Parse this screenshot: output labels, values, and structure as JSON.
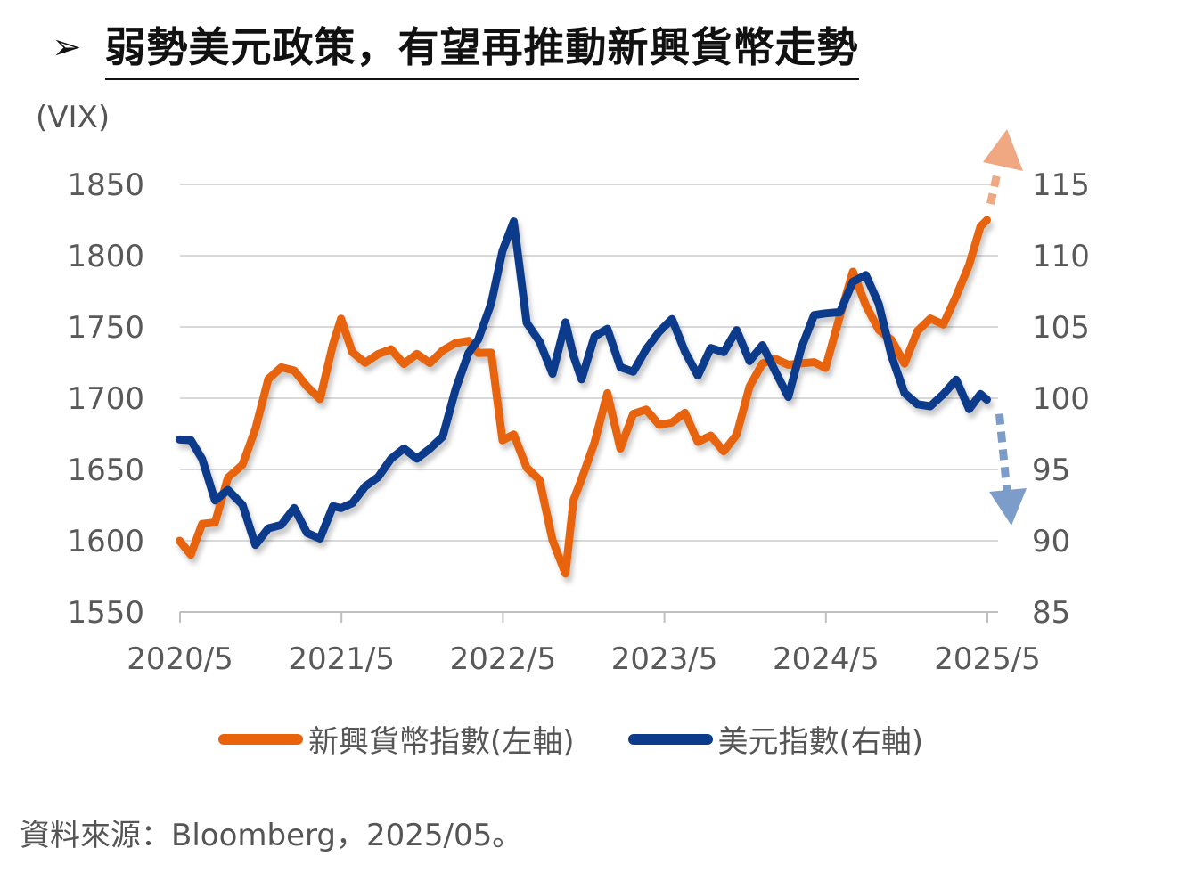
{
  "header": {
    "arrow": "➢",
    "title": "弱勢美元政策，有望再推動新興貨幣走勢"
  },
  "unit_label": "(VIX)",
  "source": "資料來源：Bloomberg，2025/05。",
  "colors": {
    "em_currency": "#E8630A",
    "dxy": "#0C3B8C",
    "em_arrow": "#F0A882",
    "dxy_arrow": "#7C9CC9",
    "grid": "#d9d9d9",
    "tick_text": "#595959"
  },
  "chart_data": {
    "type": "line",
    "title": "弱勢美元政策，有望再推動新興貨幣走勢",
    "x_ticks": [
      "2020/5",
      "2021/5",
      "2022/5",
      "2023/5",
      "2024/5",
      "2025/5"
    ],
    "y_left": {
      "ticks": [
        1550,
        1600,
        1650,
        1700,
        1750,
        1800,
        1850
      ],
      "range": [
        1550,
        1850
      ]
    },
    "y_right": {
      "ticks": [
        85,
        90,
        95,
        100,
        105,
        110,
        115
      ],
      "range": [
        85,
        115
      ]
    },
    "grid": true,
    "legend_position": "bottom",
    "x_range": [
      2020.333,
      2025.333
    ],
    "series": [
      {
        "name": "新興貨幣指數(左軸)",
        "axis": "left",
        "x": [
          2020.33,
          2020.4,
          2020.47,
          2020.55,
          2020.63,
          2020.72,
          2020.8,
          2020.88,
          2020.96,
          2021.04,
          2021.12,
          2021.2,
          2021.28,
          2021.33,
          2021.4,
          2021.48,
          2021.56,
          2021.64,
          2021.72,
          2021.8,
          2021.88,
          2021.96,
          2022.04,
          2022.12,
          2022.18,
          2022.26,
          2022.33,
          2022.4,
          2022.48,
          2022.56,
          2022.64,
          2022.72,
          2022.77,
          2022.82,
          2022.9,
          2022.98,
          2023.06,
          2023.14,
          2023.22,
          2023.3,
          2023.38,
          2023.46,
          2023.54,
          2023.62,
          2023.7,
          2023.78,
          2023.86,
          2023.94,
          2024.02,
          2024.1,
          2024.18,
          2024.26,
          2024.33,
          2024.42,
          2024.5,
          2024.58,
          2024.66,
          2024.74,
          2024.82,
          2024.9,
          2024.98,
          2025.06,
          2025.14,
          2025.22,
          2025.29,
          2025.33
        ],
        "values": [
          1600,
          1593,
          1608,
          1615,
          1645,
          1650,
          1682,
          1712,
          1720,
          1723,
          1705,
          1700,
          1740,
          1752,
          1735,
          1725,
          1728,
          1738,
          1722,
          1730,
          1728,
          1730,
          1740,
          1742,
          1728,
          1735,
          1670,
          1672,
          1655,
          1640,
          1600,
          1580,
          1625,
          1645,
          1670,
          1700,
          1668,
          1688,
          1690,
          1685,
          1680,
          1690,
          1672,
          1670,
          1665,
          1675,
          1705,
          1728,
          1726,
          1722,
          1728,
          1722,
          1722,
          1760,
          1785,
          1768,
          1748,
          1738,
          1728,
          1745,
          1755,
          1755,
          1768,
          1795,
          1822,
          1825
        ]
      },
      {
        "name": "美元指數(右軸)",
        "axis": "right",
        "x": [
          2020.33,
          2020.4,
          2020.47,
          2020.55,
          2020.63,
          2020.72,
          2020.8,
          2020.88,
          2020.96,
          2021.04,
          2021.12,
          2021.2,
          2021.28,
          2021.33,
          2021.4,
          2021.48,
          2021.56,
          2021.64,
          2021.72,
          2021.8,
          2021.88,
          2021.96,
          2022.04,
          2022.12,
          2022.18,
          2022.26,
          2022.33,
          2022.4,
          2022.48,
          2022.56,
          2022.64,
          2022.72,
          2022.77,
          2022.82,
          2022.9,
          2022.98,
          2023.06,
          2023.14,
          2023.22,
          2023.3,
          2023.38,
          2023.46,
          2023.54,
          2023.62,
          2023.7,
          2023.78,
          2023.86,
          2023.94,
          2024.02,
          2024.1,
          2024.18,
          2024.26,
          2024.33,
          2024.42,
          2024.5,
          2024.58,
          2024.66,
          2024.74,
          2024.82,
          2024.9,
          2024.98,
          2025.06,
          2025.14,
          2025.22,
          2025.29,
          2025.33
        ],
        "values": [
          97.1,
          97.0,
          95.5,
          93.2,
          93.3,
          92.5,
          90.0,
          90.5,
          91.3,
          92.4,
          90.2,
          90.5,
          92.3,
          92.1,
          93.0,
          93.5,
          94.5,
          96.0,
          96.1,
          96.0,
          96.5,
          97.0,
          101.0,
          103.0,
          104.0,
          107.0,
          110.0,
          112.5,
          105.5,
          103.6,
          102.0,
          105.3,
          102.7,
          101.7,
          104.1,
          104.8,
          102.5,
          101.5,
          103.6,
          104.8,
          105.2,
          103.6,
          101.5,
          103.3,
          103.6,
          104.5,
          102.6,
          104.0,
          101.5,
          100.3,
          103.6,
          105.5,
          106.3,
          105.9,
          108.0,
          109.0,
          106.3,
          103.0,
          100.6,
          99.2,
          99.7,
          100.3,
          101.0,
          99.6,
          100.1,
          99.9
        ]
      }
    ]
  },
  "legend": {
    "items": [
      {
        "label": "新興貨幣指數(左軸)"
      },
      {
        "label": "美元指數(右軸)"
      }
    ]
  }
}
